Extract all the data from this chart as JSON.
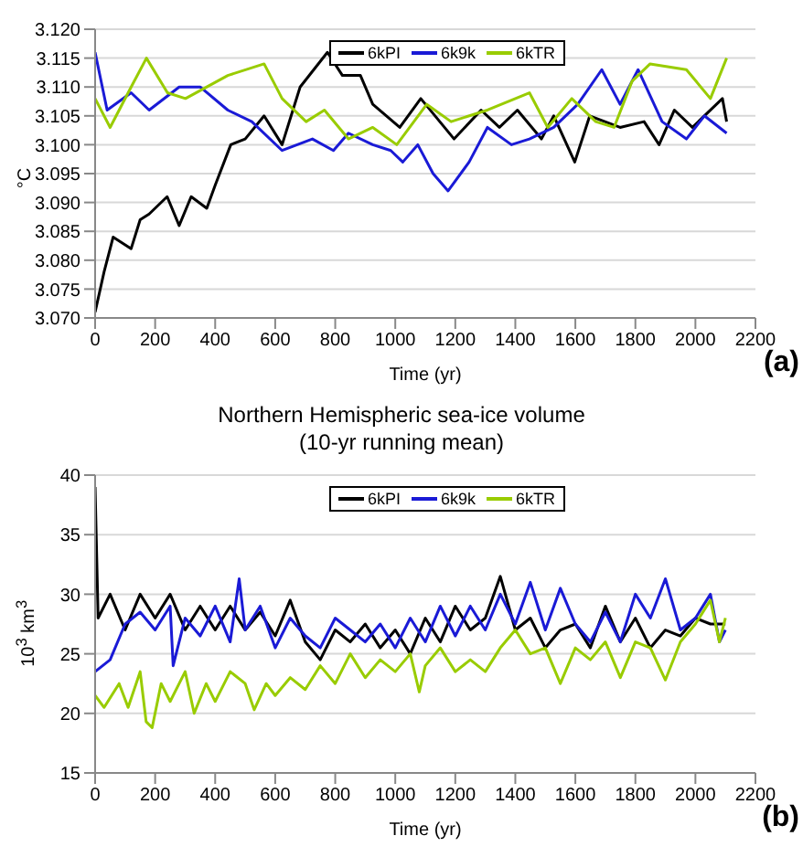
{
  "chart_data": [
    {
      "type": "line",
      "xlabel": "Time (yr)",
      "ylabel": "°C",
      "annotations": [
        "(a)"
      ],
      "legend": "top",
      "grid": "y",
      "marker": "none",
      "line_style": "solid",
      "xlim": [
        0,
        2200
      ],
      "xticks": [
        0,
        200,
        400,
        600,
        800,
        1000,
        1200,
        1400,
        1600,
        1800,
        2000,
        2200
      ],
      "ylim": [
        3.07,
        3.12
      ],
      "yticks": [
        {
          "value": 3.07,
          "label": "3.070"
        },
        {
          "value": 3.075,
          "label": "3.075"
        },
        {
          "value": 3.08,
          "label": "3.080"
        },
        {
          "value": 3.085,
          "label": "3.085"
        },
        {
          "value": 3.09,
          "label": "3.090"
        },
        {
          "value": 3.095,
          "label": "3.095"
        },
        {
          "value": 3.1,
          "label": "3.100"
        },
        {
          "value": 3.105,
          "label": "3.105"
        },
        {
          "value": 3.11,
          "label": "3.110"
        },
        {
          "value": 3.115,
          "label": "3.115"
        },
        {
          "value": 3.12,
          "label": "3.120"
        }
      ],
      "series": [
        {
          "name": "6kPI",
          "color": "#000000",
          "x": [
            0,
            30,
            60,
            120,
            150,
            180,
            240,
            280,
            320,
            372,
            400,
            452,
            500,
            563,
            623,
            683,
            774,
            824,
            884,
            925,
            1015,
            1085,
            1196,
            1286,
            1347,
            1407,
            1487,
            1528,
            1598,
            1648,
            1749,
            1829,
            1879,
            1930,
            1990,
            2090,
            2104
          ],
          "values": [
            3.071,
            3.078,
            3.084,
            3.082,
            3.087,
            3.088,
            3.091,
            3.086,
            3.091,
            3.089,
            3.093,
            3.1,
            3.101,
            3.105,
            3.1,
            3.11,
            3.116,
            3.112,
            3.112,
            3.107,
            3.103,
            3.108,
            3.101,
            3.106,
            3.103,
            3.106,
            3.101,
            3.105,
            3.097,
            3.105,
            3.103,
            3.104,
            3.1,
            3.106,
            3.103,
            3.108,
            3.104
          ]
        },
        {
          "name": "6k9k",
          "color": "#1a1ad6",
          "x": [
            0,
            40,
            120,
            180,
            280,
            350,
            442,
            522,
            623,
            724,
            794,
            844,
            925,
            985,
            1025,
            1075,
            1126,
            1176,
            1246,
            1307,
            1387,
            1447,
            1528,
            1608,
            1688,
            1749,
            1809,
            1889,
            1970,
            2030,
            2104
          ],
          "values": [
            3.116,
            3.106,
            3.109,
            3.106,
            3.11,
            3.11,
            3.106,
            3.104,
            3.099,
            3.101,
            3.099,
            3.102,
            3.1,
            3.099,
            3.097,
            3.1,
            3.095,
            3.092,
            3.097,
            3.103,
            3.1,
            3.101,
            3.103,
            3.107,
            3.113,
            3.107,
            3.113,
            3.104,
            3.101,
            3.105,
            3.102
          ]
        },
        {
          "name": "6kTR",
          "color": "#99cc00",
          "x": [
            0,
            50,
            120,
            171,
            241,
            301,
            442,
            563,
            623,
            703,
            764,
            844,
            925,
            1005,
            1105,
            1186,
            1307,
            1447,
            1508,
            1588,
            1668,
            1729,
            1789,
            1849,
            1970,
            2050,
            2104
          ],
          "values": [
            3.108,
            3.103,
            3.11,
            3.115,
            3.109,
            3.108,
            3.112,
            3.114,
            3.108,
            3.104,
            3.106,
            3.101,
            3.103,
            3.1,
            3.107,
            3.104,
            3.106,
            3.109,
            3.103,
            3.108,
            3.104,
            3.103,
            3.111,
            3.114,
            3.113,
            3.108,
            3.115
          ]
        }
      ]
    },
    {
      "type": "line",
      "title": "Northern Hemispheric sea-ice volume",
      "subtitle": "(10-yr running mean)",
      "xlabel": "Time (yr)",
      "ylabel": "10$^{3}$ km$^{3}$",
      "annotations": [
        "(b)"
      ],
      "legend": "top",
      "grid": "y",
      "marker": "none",
      "line_style": "solid",
      "xlim": [
        0,
        2200
      ],
      "xticks": [
        0,
        200,
        400,
        600,
        800,
        1000,
        1200,
        1400,
        1600,
        1800,
        2000,
        2200
      ],
      "ylim": [
        15,
        40
      ],
      "yticks": [
        15,
        20,
        25,
        30,
        35,
        40
      ],
      "series": [
        {
          "name": "6kPI",
          "color": "#000000",
          "x": [
            0,
            10,
            50,
            100,
            150,
            200,
            250,
            300,
            350,
            400,
            450,
            500,
            550,
            600,
            650,
            700,
            750,
            800,
            850,
            900,
            950,
            1000,
            1050,
            1100,
            1150,
            1200,
            1250,
            1300,
            1350,
            1400,
            1450,
            1500,
            1550,
            1600,
            1650,
            1700,
            1750,
            1800,
            1850,
            1900,
            1950,
            2000,
            2050,
            2100
          ],
          "values": [
            39,
            28,
            30,
            27,
            30,
            28,
            30,
            27,
            29,
            27,
            29,
            27,
            28.5,
            26.5,
            29.5,
            26,
            24.5,
            27,
            26,
            27.5,
            25.5,
            27,
            25,
            28,
            26,
            29,
            27,
            28,
            31.5,
            27,
            28,
            25.5,
            27,
            27.5,
            25.5,
            29,
            26,
            28,
            25.5,
            27,
            26.5,
            28,
            27.5,
            27.5
          ]
        },
        {
          "name": "6k9k",
          "color": "#1a1ad6",
          "x": [
            0,
            50,
            100,
            150,
            200,
            250,
            260,
            300,
            350,
            400,
            450,
            480,
            500,
            550,
            600,
            650,
            700,
            750,
            800,
            850,
            900,
            950,
            1000,
            1050,
            1100,
            1150,
            1200,
            1250,
            1300,
            1350,
            1400,
            1450,
            1500,
            1550,
            1600,
            1650,
            1700,
            1750,
            1800,
            1850,
            1900,
            1950,
            2000,
            2050,
            2080,
            2100
          ],
          "values": [
            23.5,
            24.5,
            27.5,
            28.5,
            27,
            29,
            24,
            28,
            26.5,
            29,
            26,
            31.3,
            27,
            29,
            25.5,
            28,
            26.5,
            25.5,
            28,
            27,
            26,
            27.5,
            25.5,
            28,
            26,
            29,
            26.5,
            29,
            27,
            30,
            27.5,
            31,
            27,
            30.5,
            27.5,
            26,
            28.5,
            26,
            30,
            28,
            31.3,
            27,
            28,
            30,
            26,
            27
          ]
        },
        {
          "name": "6kTR",
          "color": "#99cc00",
          "x": [
            0,
            30,
            80,
            110,
            150,
            170,
            190,
            220,
            250,
            300,
            330,
            370,
            400,
            450,
            500,
            530,
            570,
            600,
            650,
            700,
            750,
            800,
            850,
            900,
            950,
            1000,
            1050,
            1080,
            1100,
            1150,
            1200,
            1250,
            1300,
            1350,
            1400,
            1450,
            1500,
            1550,
            1600,
            1650,
            1700,
            1750,
            1800,
            1850,
            1900,
            1950,
            2000,
            2050,
            2080,
            2100
          ],
          "values": [
            21.5,
            20.5,
            22.5,
            20.5,
            23.5,
            19.3,
            18.8,
            22.5,
            21,
            23.5,
            20,
            22.5,
            21,
            23.5,
            22.5,
            20.3,
            22.5,
            21.5,
            23,
            22,
            24,
            22.5,
            25,
            23,
            24.5,
            23.5,
            25,
            21.8,
            24,
            25.5,
            23.5,
            24.5,
            23.5,
            25.5,
            27,
            25,
            25.5,
            22.5,
            25.5,
            24.5,
            26,
            23,
            26,
            25.5,
            22.8,
            26,
            27.5,
            29.5,
            26,
            28
          ]
        }
      ]
    }
  ]
}
